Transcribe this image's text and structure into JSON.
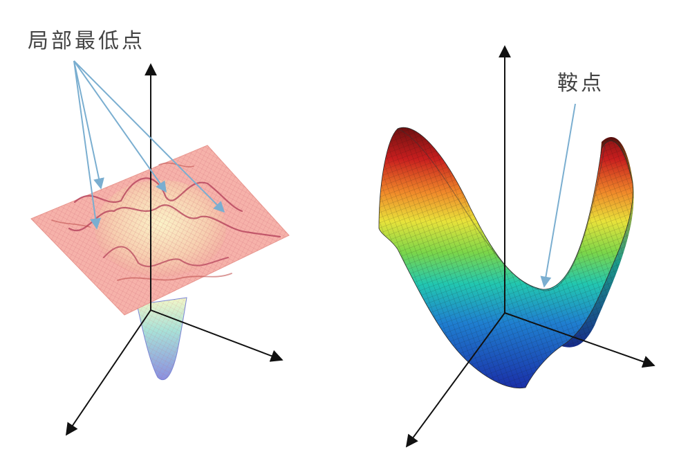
{
  "panels": [
    {
      "id": "local-minima-surface",
      "annotation": "局部最低点",
      "pointer_count": 4
    },
    {
      "id": "saddle-surface",
      "annotation": "鞍点",
      "pointer_count": 1
    }
  ],
  "colors": {
    "axis": "#111111",
    "annotation_arrow": "#7aaed0",
    "left_surface_base": "#f4a7a0",
    "left_surface_ridge": "#b03a55",
    "left_surface_well": "#8fd6e6",
    "right_colormap": [
      "#1a2fa8",
      "#1f7fd0",
      "#22c7b0",
      "#7bd64a",
      "#e8e23a",
      "#f08a2a",
      "#c81e1e",
      "#6e1010"
    ]
  }
}
